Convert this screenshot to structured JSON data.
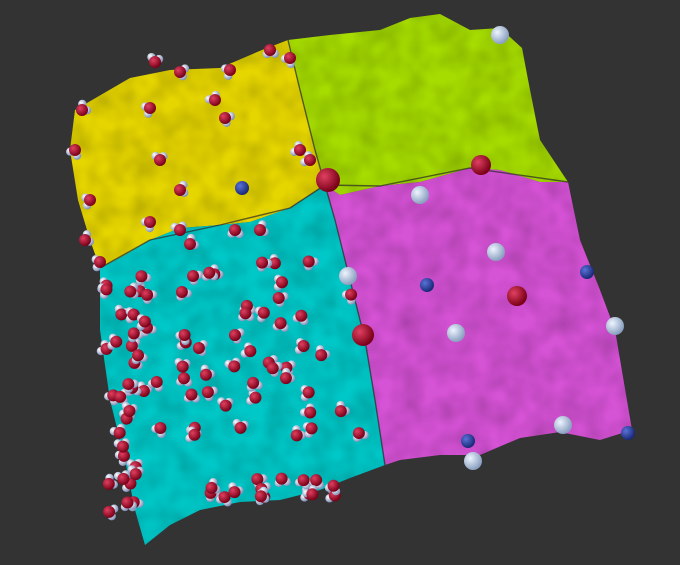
{
  "scene": {
    "background": "#333333",
    "regions": [
      {
        "name": "yellow-region",
        "color": "#e6d600"
      },
      {
        "name": "green-region",
        "color": "#a6dc00"
      },
      {
        "name": "cyan-region",
        "color": "#00c8c8"
      },
      {
        "name": "magenta-region",
        "color": "#d552d5"
      }
    ],
    "particle_colors": {
      "oxygen": "#9c0020",
      "hydrogen": "#aab8d8",
      "ion_dark": "#2a3e9c",
      "ion_light": "#b8c8e0"
    }
  }
}
